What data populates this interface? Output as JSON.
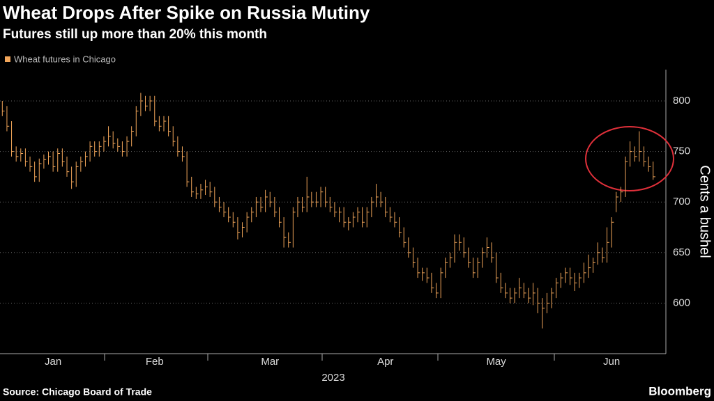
{
  "title": "Wheat Drops After Spike on Russia Mutiny",
  "subtitle": "Futures still up more than 20% this month",
  "source": "Source: Chicago Board of Trade",
  "brand": "Bloomberg",
  "chart_data": {
    "type": "ohlc",
    "ylabel": "Cents a bushel",
    "xlabel": "2023",
    "ylim": [
      550,
      831
    ],
    "yticks": [
      600,
      650,
      700,
      750,
      800
    ],
    "grid": true,
    "xticks": [
      {
        "value": 11,
        "label": "Jan"
      },
      {
        "value": 33,
        "label": "Feb"
      },
      {
        "value": 58,
        "label": "Mar"
      },
      {
        "value": 83,
        "label": "Apr"
      },
      {
        "value": 107,
        "label": "May"
      },
      {
        "value": 132,
        "label": "Jun"
      }
    ],
    "series": [
      {
        "name": "Wheat futures in Chicago",
        "color": "#f2a65a",
        "high": [
          800,
          795,
          780,
          755,
          753,
          753,
          745,
          740,
          743,
          747,
          750,
          750,
          753,
          753,
          745,
          735,
          740,
          745,
          750,
          760,
          760,
          760,
          765,
          775,
          770,
          763,
          760,
          765,
          775,
          795,
          808,
          805,
          805,
          805,
          785,
          785,
          785,
          775,
          765,
          755,
          750,
          725,
          715,
          718,
          722,
          720,
          715,
          705,
          700,
          695,
          690,
          685,
          680,
          690,
          695,
          705,
          705,
          712,
          710,
          705,
          695,
          685,
          670,
          695,
          705,
          705,
          725,
          710,
          710,
          715,
          715,
          705,
          700,
          695,
          695,
          685,
          690,
          695,
          695,
          695,
          705,
          718,
          710,
          705,
          695,
          690,
          685,
          675,
          665,
          655,
          645,
          635,
          635,
          630,
          620,
          635,
          645,
          650,
          668,
          668,
          665,
          655,
          645,
          645,
          655,
          665,
          660,
          650,
          630,
          620,
          615,
          615,
          625,
          620,
          615,
          620,
          615,
          605,
          610,
          615,
          625,
          630,
          635,
          635,
          630,
          630,
          640,
          648,
          645,
          660,
          655,
          675,
          685,
          710,
          715,
          745,
          760,
          755,
          770,
          755,
          745,
          740
        ],
        "low": [
          785,
          770,
          745,
          740,
          740,
          735,
          730,
          720,
          720,
          733,
          737,
          730,
          730,
          735,
          725,
          713,
          715,
          730,
          735,
          740,
          745,
          745,
          750,
          755,
          753,
          750,
          745,
          745,
          755,
          765,
          785,
          790,
          790,
          775,
          770,
          770,
          765,
          755,
          745,
          740,
          715,
          705,
          703,
          703,
          707,
          705,
          695,
          690,
          685,
          680,
          675,
          663,
          665,
          670,
          680,
          685,
          690,
          690,
          695,
          685,
          675,
          655,
          655,
          655,
          685,
          690,
          690,
          695,
          695,
          695,
          695,
          690,
          685,
          680,
          675,
          672,
          675,
          680,
          675,
          675,
          685,
          695,
          695,
          685,
          680,
          675,
          665,
          655,
          645,
          635,
          625,
          622,
          620,
          610,
          605,
          605,
          625,
          635,
          640,
          652,
          645,
          635,
          625,
          625,
          635,
          645,
          640,
          620,
          610,
          605,
          600,
          600,
          605,
          605,
          600,
          598,
          590,
          575,
          590,
          595,
          605,
          615,
          620,
          618,
          612,
          615,
          620,
          625,
          630,
          638,
          640,
          640,
          655,
          690,
          700,
          705,
          735,
          740,
          740,
          735,
          730,
          722
        ],
        "values": [
          790,
          775,
          750,
          745,
          748,
          740,
          735,
          725,
          738,
          742,
          745,
          735,
          748,
          740,
          730,
          720,
          735,
          740,
          745,
          755,
          750,
          755,
          760,
          765,
          758,
          755,
          750,
          760,
          770,
          790,
          800,
          795,
          800,
          780,
          775,
          780,
          770,
          760,
          750,
          745,
          720,
          710,
          708,
          712,
          715,
          710,
          700,
          695,
          690,
          685,
          680,
          670,
          675,
          685,
          690,
          700,
          695,
          705,
          700,
          690,
          680,
          665,
          660,
          690,
          700,
          695,
          705,
          700,
          700,
          710,
          700,
          695,
          690,
          690,
          680,
          680,
          685,
          690,
          680,
          690,
          700,
          705,
          700,
          690,
          685,
          680,
          670,
          660,
          650,
          640,
          630,
          630,
          625,
          615,
          610,
          630,
          640,
          645,
          660,
          660,
          650,
          640,
          630,
          640,
          650,
          655,
          645,
          625,
          615,
          610,
          605,
          610,
          615,
          610,
          605,
          610,
          600,
          595,
          600,
          610,
          620,
          625,
          630,
          625,
          620,
          625,
          630,
          635,
          640,
          650,
          645,
          660,
          680,
          705,
          710,
          740,
          750,
          745,
          750,
          740,
          735,
          725
        ]
      }
    ]
  }
}
